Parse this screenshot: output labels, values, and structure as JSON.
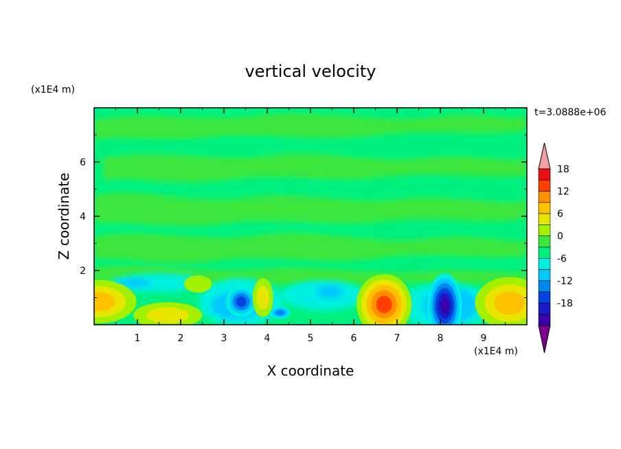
{
  "chart_data": {
    "type": "heatmap",
    "title": "vertical velocity",
    "xlabel": "X coordinate",
    "ylabel": "Z coordinate",
    "x_unit": "(x1E4 m)",
    "y_unit": "(x1E4 m)",
    "time_label": "t=3.0888e+06",
    "xlim": [
      0,
      10
    ],
    "ylim": [
      0,
      8
    ],
    "x_ticks": [
      "1",
      "2",
      "3",
      "4",
      "5",
      "6",
      "7",
      "8",
      "9"
    ],
    "y_ticks": [
      "2",
      "4",
      "6"
    ],
    "colorbar": {
      "labels": [
        "18",
        "12",
        "6",
        "0",
        "-6",
        "-12",
        "-18"
      ],
      "levels": [
        -21,
        -18,
        -15,
        -12,
        -9,
        -6,
        -3,
        0,
        3,
        6,
        9,
        12,
        15,
        18,
        21
      ],
      "colors": [
        "#7a008f",
        "#3a00a8",
        "#1a1ac8",
        "#0044e0",
        "#0088f0",
        "#00c8ff",
        "#00f0e0",
        "#00f080",
        "#3ce63c",
        "#a0f000",
        "#e6e600",
        "#ffc000",
        "#ff9000",
        "#ff4000",
        "#e81010",
        "#f4a0a0"
      ]
    },
    "features": [
      {
        "x": 0.1,
        "z": 0.85,
        "w": -3.5,
        "sx": 0.55,
        "sz": 0.5,
        "peak": 9
      },
      {
        "x": 1.7,
        "z": 0.35,
        "w": 8,
        "sx": 0.5,
        "sz": 0.3,
        "peak": 6
      },
      {
        "x": 2.4,
        "z": 1.5,
        "w": 4,
        "sx": 0.2,
        "sz": 0.2,
        "peak": 5
      },
      {
        "x": 3.4,
        "z": 0.85,
        "w": -2,
        "sx": 0.22,
        "sz": 0.35,
        "peak": -12
      },
      {
        "x": 3.9,
        "z": 1.0,
        "w": 3,
        "sx": 0.15,
        "sz": 0.45,
        "peak": 6
      },
      {
        "x": 4.3,
        "z": 0.45,
        "w": 1,
        "sx": 0.15,
        "sz": 0.15,
        "peak": -9
      },
      {
        "x": 6.7,
        "z": 0.75,
        "w": 3,
        "sx": 0.4,
        "sz": 0.7,
        "peak": 15
      },
      {
        "x": 8.1,
        "z": 0.7,
        "w": 3,
        "sx": 0.25,
        "sz": 0.75,
        "peak": -18
      },
      {
        "x": 9.6,
        "z": 0.8,
        "w": 3,
        "sx": 0.5,
        "sz": 0.6,
        "peak": 9
      }
    ]
  }
}
